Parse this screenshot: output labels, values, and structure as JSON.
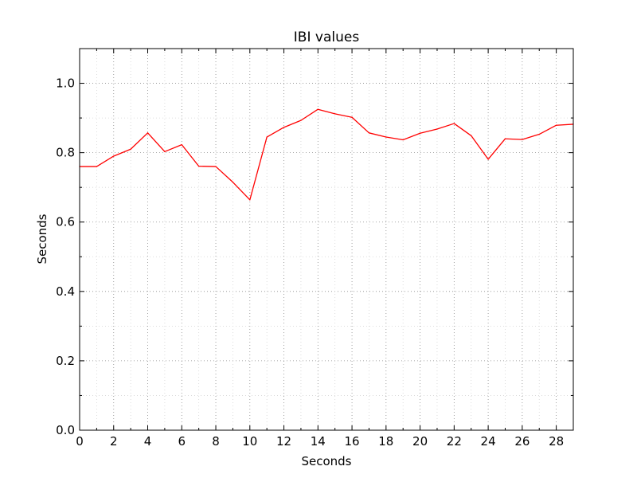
{
  "chart_data": {
    "type": "line",
    "title": "IBI values",
    "xlabel": "Seconds",
    "ylabel": "Seconds",
    "xlim": [
      0,
      29
    ],
    "ylim": [
      0.0,
      1.1
    ],
    "x_ticks": [
      0,
      2,
      4,
      6,
      8,
      10,
      12,
      14,
      16,
      18,
      20,
      22,
      24,
      26,
      28
    ],
    "x_tick_labels": [
      "0",
      "2",
      "4",
      "6",
      "8",
      "10",
      "12",
      "14",
      "16",
      "18",
      "20",
      "22",
      "24",
      "26",
      "28"
    ],
    "x_minor_ticks": [
      1,
      3,
      5,
      7,
      9,
      11,
      13,
      15,
      17,
      19,
      21,
      23,
      25,
      27,
      29
    ],
    "y_ticks": [
      0.0,
      0.2,
      0.4,
      0.6,
      0.8,
      1.0
    ],
    "y_tick_labels": [
      "0.0",
      "0.2",
      "0.4",
      "0.6",
      "0.8",
      "1.0"
    ],
    "y_minor_ticks": [
      0.1,
      0.3,
      0.5,
      0.7,
      0.9
    ],
    "grid": true,
    "series": [
      {
        "color": "#ff0000",
        "x": [
          0,
          1,
          2,
          3,
          4,
          5,
          6,
          7,
          8,
          9,
          10,
          11,
          12,
          13,
          14,
          15,
          16,
          17,
          18,
          19,
          20,
          21,
          22,
          23,
          24,
          25,
          26,
          27,
          28,
          29
        ],
        "values": [
          0.76,
          0.76,
          0.79,
          0.81,
          0.857,
          0.803,
          0.823,
          0.761,
          0.76,
          0.715,
          0.664,
          0.845,
          0.873,
          0.893,
          0.925,
          0.912,
          0.902,
          0.857,
          0.845,
          0.837,
          0.856,
          0.868,
          0.884,
          0.849,
          0.781,
          0.84,
          0.838,
          0.853,
          0.879,
          0.882
        ]
      }
    ]
  }
}
